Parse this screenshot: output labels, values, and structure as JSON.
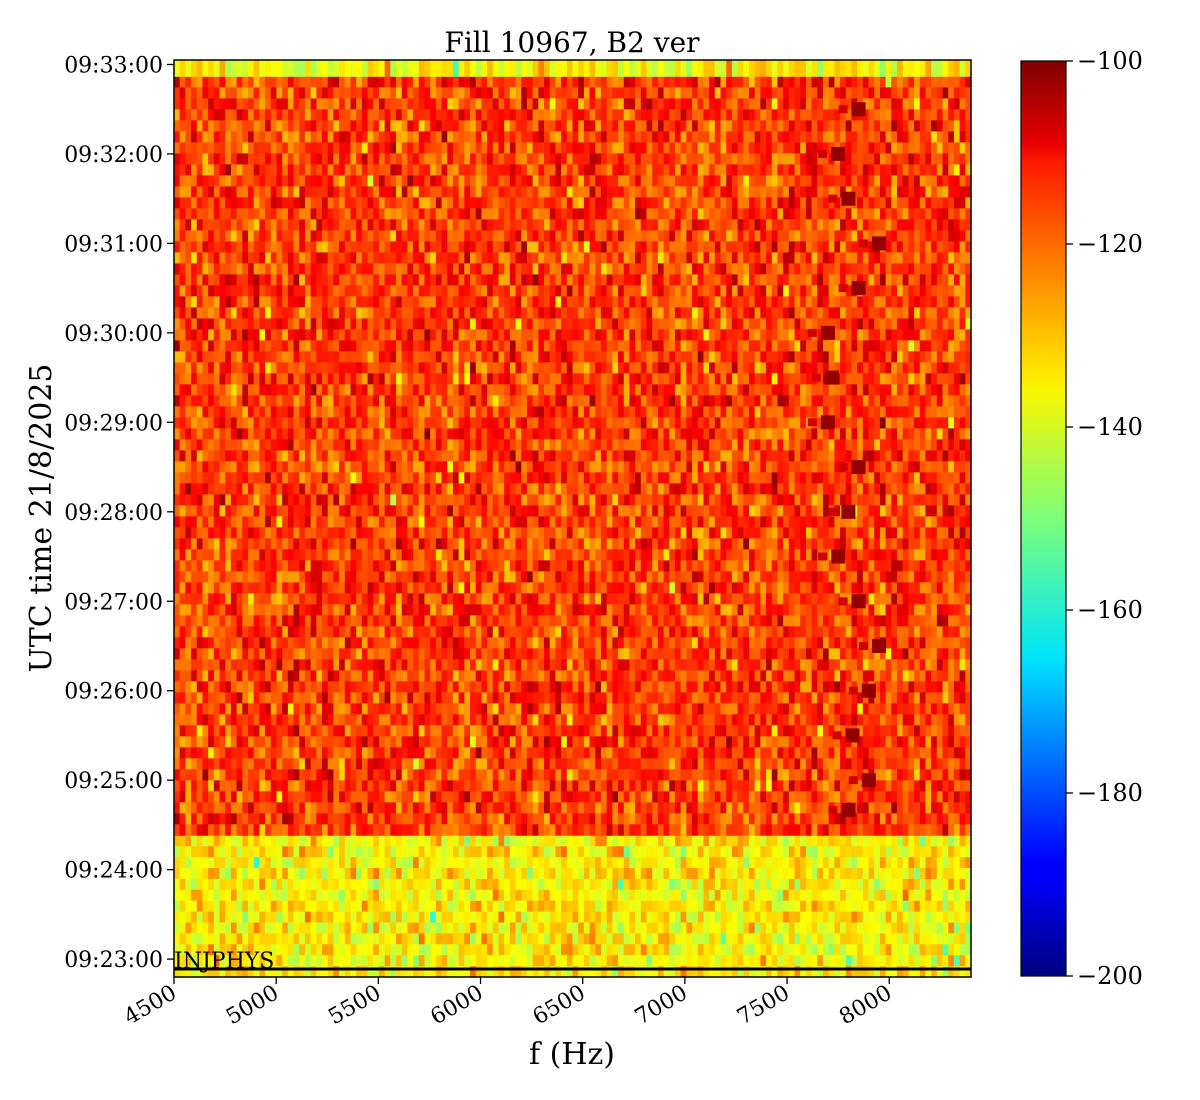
{
  "chart_data": {
    "type": "heatmap",
    "title": "Fill 10967, B2 ver",
    "xlabel": "f (Hz)",
    "ylabel": "UTC time 21/8/2025",
    "xlim": [
      4500,
      8400
    ],
    "x_ticks": [
      4500,
      5000,
      5500,
      6000,
      6500,
      7000,
      7500,
      8000
    ],
    "x_tick_labels": [
      "4500",
      "5000",
      "5500",
      "6000",
      "6500",
      "7000",
      "7500",
      "8000"
    ],
    "ylim": [
      "09:22:48",
      "09:33:03"
    ],
    "y_ticks": [
      "09:23:00",
      "09:24:00",
      "09:25:00",
      "09:26:00",
      "09:27:00",
      "09:28:00",
      "09:29:00",
      "09:30:00",
      "09:31:00",
      "09:32:00",
      "09:33:00"
    ],
    "y_tick_labels": [
      "09:23:00",
      "09:24:00",
      "09:25:00",
      "09:26:00",
      "09:27:00",
      "09:28:00",
      "09:29:00",
      "09:30:00",
      "09:31:00",
      "09:32:00",
      "09:33:00"
    ],
    "colormap": "jet",
    "colorbar": {
      "range": [
        -200,
        -100
      ],
      "ticks": [
        -100,
        -120,
        -140,
        -160,
        -180,
        -200
      ],
      "tick_labels": [
        "−100",
        "−120",
        "−140",
        "−160",
        "−180",
        "−200"
      ]
    },
    "regions": [
      {
        "time_start": "09:22:48",
        "time_end": "09:24:23",
        "level_dB": -136
      },
      {
        "time_start": "09:24:23",
        "time_end": "09:32:52",
        "level_dB": -118
      },
      {
        "time_start": "09:32:52",
        "time_end": "09:33:03",
        "level_dB": -137
      }
    ],
    "line_peak": {
      "level_dB": -102,
      "points": [
        {
          "time": "09:24:40",
          "f": 7800
        },
        {
          "time": "09:25:00",
          "f": 7900
        },
        {
          "time": "09:25:30",
          "f": 7820
        },
        {
          "time": "09:26:00",
          "f": 7900
        },
        {
          "time": "09:26:30",
          "f": 7950
        },
        {
          "time": "09:27:00",
          "f": 7850
        },
        {
          "time": "09:27:30",
          "f": 7750
        },
        {
          "time": "09:28:00",
          "f": 7800
        },
        {
          "time": "09:28:30",
          "f": 7850
        },
        {
          "time": "09:29:00",
          "f": 7700
        },
        {
          "time": "09:29:30",
          "f": 7720
        },
        {
          "time": "09:30:00",
          "f": 7700
        },
        {
          "time": "09:30:30",
          "f": 7850
        },
        {
          "time": "09:31:00",
          "f": 7950
        },
        {
          "time": "09:31:30",
          "f": 7800
        },
        {
          "time": "09:32:00",
          "f": 7750
        },
        {
          "time": "09:32:30",
          "f": 7850
        }
      ]
    },
    "annotation": {
      "text": "INJPHYS",
      "time": "09:22:48",
      "f": 4500
    }
  }
}
